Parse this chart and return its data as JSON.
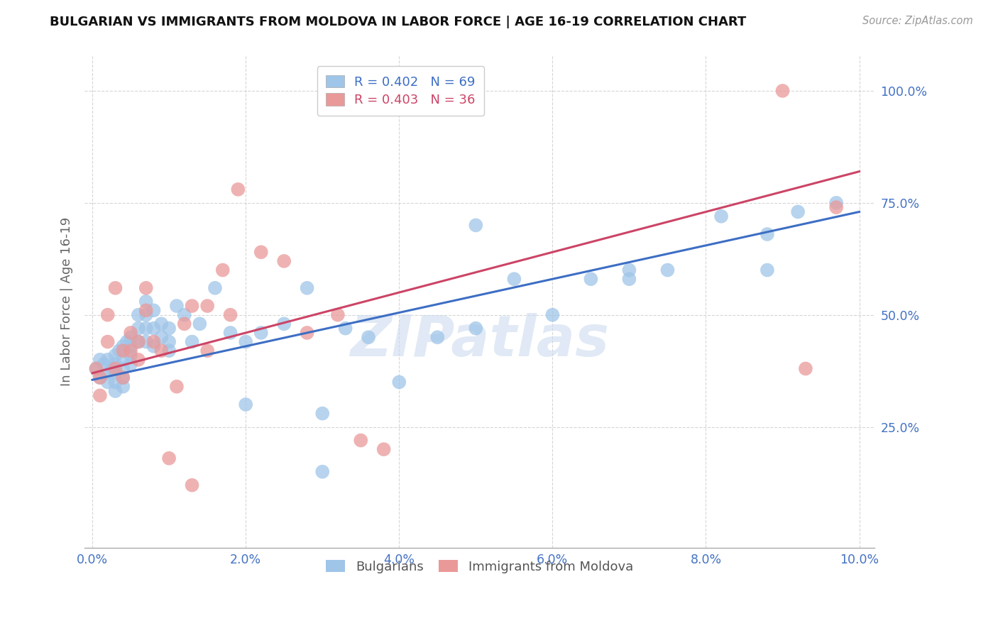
{
  "title": "BULGARIAN VS IMMIGRANTS FROM MOLDOVA IN LABOR FORCE | AGE 16-19 CORRELATION CHART",
  "source": "Source: ZipAtlas.com",
  "ylabel": "In Labor Force | Age 16-19",
  "xlim": [
    -0.001,
    0.102
  ],
  "ylim": [
    -0.02,
    1.08
  ],
  "xtick_labels": [
    "0.0%",
    "2.0%",
    "4.0%",
    "6.0%",
    "8.0%",
    "10.0%"
  ],
  "xtick_values": [
    0.0,
    0.02,
    0.04,
    0.06,
    0.08,
    0.1
  ],
  "ytick_labels": [
    "25.0%",
    "50.0%",
    "75.0%",
    "100.0%"
  ],
  "ytick_values": [
    0.25,
    0.5,
    0.75,
    1.0
  ],
  "blue_color": "#9FC5E8",
  "pink_color": "#EA9999",
  "blue_line_color": "#3D6EC4",
  "pink_line_color": "#CC4466",
  "label_color": "#4472C4",
  "axis_tick_color": "#4472C4",
  "legend_blue_label": "R = 0.402   N = 69",
  "legend_pink_label": "R = 0.403   N = 36",
  "bottom_legend_blue": "Bulgarians",
  "bottom_legend_pink": "Immigrants from Moldova",
  "watermark": "ZIPatlas",
  "blue_x": [
    0.0005,
    0.001,
    0.001,
    0.0015,
    0.002,
    0.002,
    0.002,
    0.0025,
    0.003,
    0.003,
    0.003,
    0.003,
    0.003,
    0.0035,
    0.004,
    0.004,
    0.004,
    0.004,
    0.004,
    0.0045,
    0.005,
    0.005,
    0.005,
    0.005,
    0.006,
    0.006,
    0.006,
    0.007,
    0.007,
    0.007,
    0.007,
    0.008,
    0.008,
    0.008,
    0.009,
    0.009,
    0.01,
    0.01,
    0.011,
    0.012,
    0.013,
    0.014,
    0.016,
    0.018,
    0.02,
    0.022,
    0.025,
    0.028,
    0.03,
    0.033,
    0.036,
    0.04,
    0.045,
    0.05,
    0.055,
    0.06,
    0.065,
    0.07,
    0.075,
    0.082,
    0.088,
    0.092,
    0.097,
    0.07,
    0.088,
    0.05,
    0.03,
    0.02,
    0.01
  ],
  "blue_y": [
    0.38,
    0.4,
    0.36,
    0.39,
    0.4,
    0.37,
    0.35,
    0.38,
    0.41,
    0.39,
    0.37,
    0.35,
    0.33,
    0.42,
    0.43,
    0.4,
    0.38,
    0.36,
    0.34,
    0.44,
    0.45,
    0.43,
    0.41,
    0.39,
    0.5,
    0.47,
    0.44,
    0.53,
    0.5,
    0.47,
    0.44,
    0.51,
    0.47,
    0.43,
    0.48,
    0.45,
    0.47,
    0.44,
    0.52,
    0.5,
    0.44,
    0.48,
    0.56,
    0.46,
    0.44,
    0.46,
    0.48,
    0.56,
    0.15,
    0.47,
    0.45,
    0.35,
    0.45,
    0.47,
    0.58,
    0.5,
    0.58,
    0.58,
    0.6,
    0.72,
    0.6,
    0.73,
    0.75,
    0.6,
    0.68,
    0.7,
    0.28,
    0.3,
    0.42
  ],
  "pink_x": [
    0.0005,
    0.001,
    0.001,
    0.002,
    0.002,
    0.003,
    0.003,
    0.004,
    0.004,
    0.005,
    0.005,
    0.006,
    0.006,
    0.007,
    0.007,
    0.008,
    0.009,
    0.01,
    0.011,
    0.012,
    0.013,
    0.015,
    0.017,
    0.019,
    0.022,
    0.025,
    0.028,
    0.032,
    0.035,
    0.038,
    0.09,
    0.093,
    0.097,
    0.015,
    0.013,
    0.018
  ],
  "pink_y": [
    0.38,
    0.36,
    0.32,
    0.5,
    0.44,
    0.56,
    0.38,
    0.42,
    0.36,
    0.46,
    0.42,
    0.44,
    0.4,
    0.56,
    0.51,
    0.44,
    0.42,
    0.18,
    0.34,
    0.48,
    0.12,
    0.52,
    0.6,
    0.78,
    0.64,
    0.62,
    0.46,
    0.5,
    0.22,
    0.2,
    1.0,
    0.38,
    0.74,
    0.42,
    0.52,
    0.5
  ],
  "blue_trend_x": [
    0.0,
    0.1
  ],
  "blue_trend_y": [
    0.355,
    0.73
  ],
  "pink_trend_x": [
    0.0,
    0.1
  ],
  "pink_trend_y": [
    0.37,
    0.82
  ]
}
